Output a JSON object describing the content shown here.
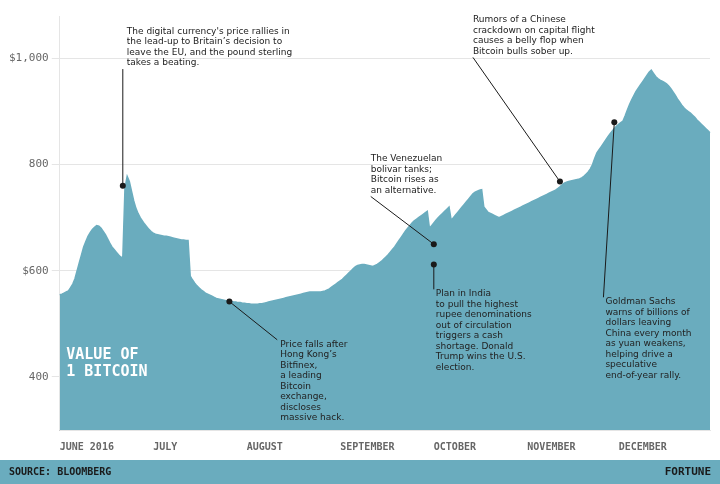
{
  "chart_data": {
    "type": "area",
    "title": "VALUE OF\n1 BITCOIN",
    "source": "SOURCE: BLOOMBERG",
    "brand": "FORTUNE",
    "color": "#6aacbe",
    "grid": "y",
    "ylim": [
      300,
      1080
    ],
    "yticks": [
      400,
      {
        "value": 600,
        "label": "$600"
      },
      800,
      {
        "value": 1000,
        "label": "$1,000"
      }
    ],
    "categories": [
      "JUNE 2016",
      null,
      null,
      null,
      null,
      null,
      null,
      null,
      null,
      null,
      null,
      null,
      null,
      null,
      null,
      null,
      null,
      null,
      null,
      null,
      null,
      null,
      null,
      null,
      null,
      null,
      null,
      null,
      null,
      null,
      null,
      null,
      null,
      null,
      null,
      null,
      null,
      null,
      null,
      null,
      null,
      null,
      null,
      "JULY",
      null,
      null,
      null,
      null,
      null,
      null,
      null,
      null,
      null,
      null,
      null,
      null,
      null,
      null,
      null,
      null,
      null,
      null,
      null,
      null,
      null,
      null,
      null,
      null,
      null,
      null,
      null,
      null,
      null,
      null,
      null,
      null,
      null,
      null,
      null,
      null,
      null,
      null,
      null,
      null,
      null,
      null,
      "AUGUST",
      null,
      null,
      null,
      null,
      null,
      null,
      null,
      null,
      null,
      null,
      null,
      null,
      null,
      null,
      null,
      null,
      null,
      null,
      null,
      null,
      null,
      null,
      null,
      null,
      null,
      null,
      null,
      null,
      null,
      null,
      null,
      null,
      null,
      null,
      null,
      null,
      null,
      null,
      null,
      null,
      null,
      null,
      "SEPTEMBER",
      null,
      null,
      null,
      null,
      null,
      null,
      null,
      null,
      null,
      null,
      null,
      null,
      null,
      null,
      null,
      null,
      null,
      null,
      null,
      null,
      null,
      null,
      null,
      null,
      null,
      null,
      null,
      null,
      null,
      null,
      null,
      null,
      null,
      null,
      null,
      null,
      null,
      null,
      null,
      null,
      null,
      null,
      "OCTOBER",
      null,
      null,
      null,
      null,
      null,
      null,
      null,
      null,
      null,
      null,
      null,
      null,
      null,
      null,
      null,
      null,
      null,
      null,
      null,
      null,
      null,
      null,
      null,
      null,
      null,
      null,
      null,
      null,
      null,
      null,
      null,
      null,
      null,
      null,
      null,
      null,
      null,
      null,
      null,
      null,
      null,
      null,
      "NOVEMBER",
      null,
      null,
      null,
      null,
      null,
      null,
      null,
      null,
      null,
      null,
      null,
      null,
      null,
      null,
      null,
      null,
      null,
      null,
      null,
      null,
      null,
      null,
      null,
      null,
      null,
      null,
      null,
      null,
      null,
      null,
      null,
      null,
      null,
      null,
      null,
      null,
      null,
      null,
      null,
      null,
      null,
      "DECEMBER",
      null,
      null,
      null,
      null,
      null,
      null,
      null,
      null,
      null,
      null,
      null,
      null,
      null,
      null,
      null,
      null,
      null,
      null,
      null,
      null,
      null,
      null,
      null,
      null,
      null,
      null,
      null,
      null,
      null,
      null,
      null,
      null,
      null,
      null,
      null,
      null,
      null,
      null,
      null,
      null,
      null,
      null
    ],
    "values": [
      555,
      556,
      558,
      560,
      562,
      568,
      575,
      585,
      600,
      615,
      630,
      645,
      655,
      665,
      672,
      678,
      682,
      685,
      684,
      680,
      674,
      668,
      660,
      652,
      645,
      640,
      635,
      630,
      626,
      624,
      756,
      778,
      768,
      750,
      732,
      718,
      708,
      700,
      694,
      688,
      683,
      678,
      674,
      671,
      669,
      668,
      667,
      666,
      665,
      665,
      664,
      663,
      662,
      661,
      660,
      659,
      658,
      658,
      657,
      657,
      590,
      583,
      577,
      572,
      568,
      564,
      561,
      558,
      556,
      554,
      552,
      550,
      548,
      547,
      546,
      545,
      544,
      543,
      542,
      542,
      541,
      541,
      540,
      540,
      539,
      539,
      538,
      538,
      537,
      537,
      537,
      537,
      538,
      538,
      539,
      540,
      541,
      542,
      543,
      544,
      545,
      546,
      547,
      548,
      549,
      550,
      551,
      552,
      553,
      554,
      555,
      556,
      557,
      558,
      559,
      560,
      560,
      560,
      560,
      560,
      560,
      561,
      562,
      564,
      566,
      569,
      572,
      575,
      578,
      581,
      584,
      588,
      592,
      596,
      600,
      604,
      608,
      610,
      611,
      612,
      612,
      611,
      610,
      609,
      608,
      610,
      612,
      615,
      618,
      622,
      626,
      630,
      635,
      640,
      645,
      651,
      657,
      663,
      669,
      675,
      680,
      685,
      690,
      694,
      697,
      700,
      703,
      706,
      709,
      712,
      680,
      685,
      690,
      695,
      700,
      704,
      708,
      712,
      716,
      720,
      695,
      700,
      705,
      710,
      715,
      720,
      725,
      730,
      735,
      740,
      745,
      748,
      750,
      752,
      753,
      720,
      715,
      710,
      708,
      706,
      704,
      702,
      700,
      702,
      704,
      706,
      708,
      710,
      712,
      714,
      716,
      718,
      720,
      722,
      724,
      726,
      728,
      730,
      732,
      734,
      736,
      738,
      740,
      742,
      744,
      746,
      748,
      750,
      752,
      755,
      758,
      762,
      765,
      767,
      768,
      769,
      770,
      771,
      772,
      773,
      775,
      778,
      782,
      786,
      792,
      800,
      812,
      822,
      828,
      834,
      840,
      846,
      852,
      858,
      863,
      868,
      872,
      876,
      879,
      882,
      892,
      903,
      913,
      922,
      930,
      938,
      944,
      950,
      956,
      962,
      968,
      974,
      978,
      972,
      966,
      962,
      959,
      957,
      955,
      952,
      948,
      943,
      937,
      931,
      924,
      918,
      912,
      907,
      903,
      900,
      897,
      893,
      889,
      884,
      880,
      876,
      872,
      868,
      864,
      860
    ],
    "annotations": [
      {
        "text": "The digital currency's price rallies in\nthe lead-up to Britain’s decision to\nleave the EU, and the pound sterling\ntakes a beating.",
        "x": 29,
        "y": 760
      },
      {
        "text": "Price falls after\nHong Kong’s\nBitfinex,\na leading\nBitcoin\nexchange,\ndiscloses\nmassive hack.",
        "x": 78,
        "y": 542
      },
      {
        "text": "The Venezuelan\nbolivar tanks;\nBitcoin rises as\nan alternative.",
        "x": 172,
        "y": 650
      },
      {
        "text": "Rumors of a Chinese\ncrackdown on capital flight\ncauses a belly flop when\nBitcoin bulls sober up.",
        "x": 230,
        "y": 768
      },
      {
        "text": "Plan in India\nto pull the highest\nrupee denominations\nout of circulation\ntriggers a cash\nshortage. Donald\nTrump wins the U.S.\nelection.",
        "x": 172,
        "y": 612
      },
      {
        "text": "Goldman Sachs\nwarns of billions of\ndollars leaving\nChina every month\nas yuan weakens,\nhelping drive a\nspeculative\nend-of-year rally.",
        "x": 255,
        "y": 880
      }
    ]
  }
}
